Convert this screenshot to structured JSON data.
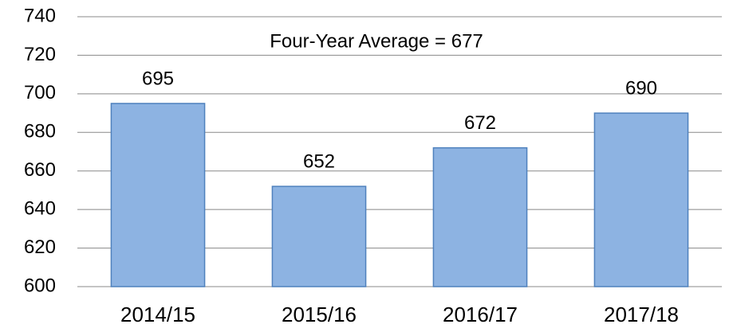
{
  "chart_data": {
    "type": "bar",
    "annotation": "Four-Year Average = 677",
    "categories": [
      "2014/15",
      "2015/16",
      "2016/17",
      "2017/18"
    ],
    "values": [
      695,
      652,
      672,
      690
    ],
    "color": "#8db3e2",
    "edgecolor": "#4f81bd",
    "ylim": [
      600,
      740
    ],
    "yticks": [
      600,
      620,
      640,
      660,
      680,
      700,
      720,
      740
    ],
    "grid": true
  }
}
